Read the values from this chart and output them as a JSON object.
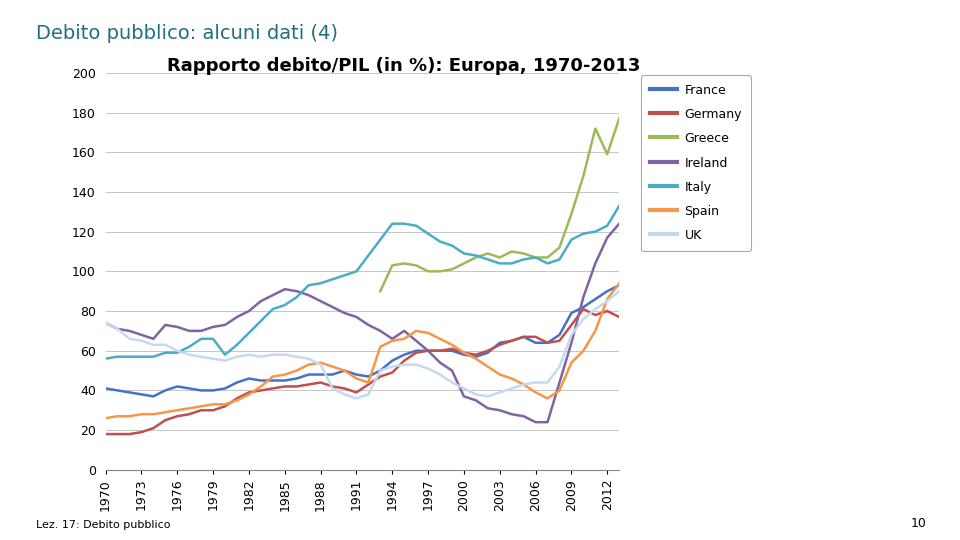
{
  "title_main": "Debito pubblico: alcuni dati (4)",
  "title_sub": "Rapporto debito/PIL (in %): Europa, 1970-2013",
  "footer": "Lez. 17: Debito pubblico",
  "page_number": "10",
  "years": [
    1970,
    1971,
    1972,
    1973,
    1974,
    1975,
    1976,
    1977,
    1978,
    1979,
    1980,
    1981,
    1982,
    1983,
    1984,
    1985,
    1986,
    1987,
    1988,
    1989,
    1990,
    1991,
    1992,
    1993,
    1994,
    1995,
    1996,
    1997,
    1998,
    1999,
    2000,
    2001,
    2002,
    2003,
    2004,
    2005,
    2006,
    2007,
    2008,
    2009,
    2010,
    2011,
    2012,
    2013
  ],
  "France_data": [
    41,
    40,
    39,
    38,
    37,
    40,
    42,
    41,
    40,
    40,
    41,
    44,
    46,
    45,
    45,
    45,
    46,
    48,
    48,
    48,
    50,
    48,
    47,
    50,
    55,
    58,
    60,
    60,
    60,
    60,
    58,
    57,
    59,
    64,
    65,
    67,
    64,
    64,
    68,
    79,
    82,
    86,
    90,
    93
  ],
  "Germany_data": [
    null,
    null,
    null,
    null,
    null,
    null,
    null,
    null,
    null,
    null,
    null,
    null,
    null,
    null,
    null,
    null,
    null,
    null,
    null,
    null,
    null,
    null,
    null,
    null,
    null,
    null,
    null,
    null,
    null,
    null,
    null,
    null,
    null,
    null,
    null,
    null,
    null,
    null,
    null,
    null,
    null,
    null,
    null,
    null
  ],
  "Greece_data": [
    null,
    null,
    null,
    null,
    null,
    null,
    null,
    null,
    null,
    null,
    null,
    null,
    null,
    null,
    null,
    null,
    null,
    null,
    null,
    null,
    null,
    null,
    null,
    null,
    103,
    104,
    103,
    100,
    100,
    101,
    104,
    107,
    109,
    107,
    110,
    109,
    107,
    107,
    112,
    129,
    148,
    172,
    159,
    177
  ],
  "Ireland_data": [
    74,
    71,
    70,
    68,
    66,
    73,
    72,
    70,
    70,
    72,
    73,
    77,
    80,
    85,
    88,
    91,
    90,
    88,
    85,
    82,
    79,
    77,
    73,
    70,
    66,
    70,
    65,
    60,
    54,
    50,
    37,
    35,
    31,
    30,
    28,
    27,
    24,
    24,
    44,
    64,
    87,
    104,
    117,
    124
  ],
  "Italy_data": [
    56,
    57,
    57,
    57,
    57,
    59,
    59,
    62,
    66,
    66,
    58,
    63,
    69,
    75,
    81,
    83,
    87,
    93,
    94,
    96,
    98,
    100,
    108,
    116,
    124,
    124,
    123,
    119,
    115,
    113,
    109,
    108,
    106,
    104,
    104,
    106,
    107,
    104,
    106,
    116,
    119,
    120,
    123,
    133
  ],
  "Spain_data": [
    null,
    null,
    null,
    null,
    null,
    null,
    null,
    null,
    null,
    null,
    null,
    null,
    null,
    null,
    null,
    null,
    null,
    null,
    null,
    null,
    null,
    null,
    null,
    null,
    null,
    null,
    null,
    null,
    null,
    null,
    null,
    null,
    null,
    null,
    null,
    null,
    null,
    null,
    null,
    null,
    null,
    null,
    null,
    null
  ],
  "UK_data": [
    74,
    71,
    66,
    65,
    63,
    63,
    60,
    58,
    57,
    56,
    55,
    57,
    58,
    57,
    58,
    58,
    57,
    56,
    53,
    41,
    38,
    36,
    38,
    50,
    52,
    53,
    53,
    51,
    48,
    44,
    41,
    38,
    37,
    39,
    41,
    43,
    44,
    44,
    52,
    68,
    76,
    81,
    85,
    90
  ],
  "colors": {
    "France": "#4472C4",
    "Germany": "#C0504D",
    "Greece": "#9BBB59",
    "Ireland": "#8064A2",
    "Italy": "#4BACC6",
    "Spain": "#F79646",
    "UK": "#C6D9F1"
  },
  "ylim": [
    0,
    200
  ],
  "yticks": [
    0,
    20,
    40,
    60,
    80,
    100,
    120,
    140,
    160,
    180,
    200
  ],
  "background_color": "#FFFFFF",
  "title_color": "#1F7080",
  "title_main_size": 14,
  "title_sub_size": 13
}
